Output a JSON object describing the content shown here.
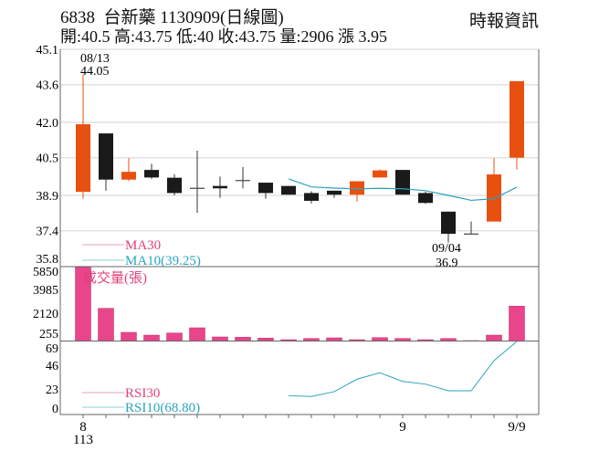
{
  "header": {
    "title": "6838  台新藥 1130909(日線圖)",
    "quote": "開:40.5 高:43.75 低:40 收:43.75 量:2906 漲 3.95",
    "source": "時報資訊"
  },
  "colors": {
    "up": "#e8500f",
    "down": "#1a1a1a",
    "ma10": "#2aa3bf",
    "ma30": "#e0407a",
    "volume": "#e8458a",
    "grid": "#e2e2e2"
  },
  "chart_data": [
    {
      "type": "candlestick",
      "title": "6838 台新藥 1130909(日線圖)",
      "y_ticks": [
        "45.1",
        "43.6",
        "42.0",
        "40.5",
        "38.9",
        "37.4",
        "35.8"
      ],
      "ylim": [
        35.8,
        45.1
      ],
      "grid": true,
      "ohlc": [
        [
          39.05,
          44.05,
          38.76,
          41.92
        ],
        [
          41.53,
          41.53,
          39.1,
          39.57
        ],
        [
          39.57,
          40.48,
          39.5,
          39.9
        ],
        [
          39.98,
          40.24,
          39.6,
          39.66
        ],
        [
          39.65,
          39.8,
          38.9,
          39.0
        ],
        [
          39.2,
          40.8,
          38.16,
          39.2
        ],
        [
          39.3,
          39.7,
          38.8,
          39.2
        ],
        [
          39.53,
          40.1,
          39.2,
          39.53
        ],
        [
          39.44,
          39.44,
          38.76,
          39.0
        ],
        [
          39.3,
          39.3,
          38.93,
          38.93
        ],
        [
          39.0,
          39.08,
          38.56,
          38.67
        ],
        [
          39.1,
          39.1,
          38.8,
          38.93
        ],
        [
          38.93,
          39.5,
          38.64,
          39.5
        ],
        [
          39.66,
          40.01,
          39.66,
          39.96
        ],
        [
          39.98,
          39.98,
          38.93,
          38.93
        ],
        [
          39.0,
          39.06,
          38.55,
          38.58
        ],
        [
          38.21,
          38.21,
          36.9,
          37.27
        ],
        [
          37.26,
          37.79,
          37.26,
          37.26
        ],
        [
          37.79,
          40.48,
          37.79,
          39.79
        ],
        [
          40.5,
          43.75,
          40.0,
          43.75
        ]
      ],
      "ma10": [
        null,
        null,
        null,
        null,
        null,
        null,
        null,
        null,
        null,
        39.6,
        39.26,
        39.21,
        39.18,
        39.2,
        39.18,
        39.1,
        38.9,
        38.69,
        38.76,
        39.25
      ],
      "legend": [
        "MA30",
        "MA10(39.25)"
      ],
      "annotations": [
        {
          "index": 0,
          "date": "08/13",
          "value": "44.05",
          "type": "high"
        },
        {
          "index": 16,
          "date": "09/04",
          "value": "36.9",
          "type": "low"
        }
      ]
    },
    {
      "type": "bar",
      "label": "成交量(張)",
      "y_ticks": [
        "5850",
        "3985",
        "2120",
        "255"
      ],
      "ylim": [
        0,
        6200
      ],
      "values": [
        6150,
        2725,
        723,
        494,
        669,
        1104,
        342,
        319,
        244,
        114,
        213,
        267,
        114,
        289,
        213,
        114,
        213,
        38,
        494,
        2906
      ]
    },
    {
      "type": "line",
      "y_ticks": [
        "69",
        "46",
        "23",
        "0"
      ],
      "ylim": [
        0,
        69
      ],
      "rsi10": [
        null,
        null,
        null,
        null,
        null,
        null,
        null,
        null,
        null,
        12.9,
        12.0,
        17.0,
        29.9,
        36.5,
        27.6,
        24.8,
        17.9,
        17.9,
        49.0,
        68.8
      ],
      "legend": [
        "RSI30",
        "RSI10(68.80)"
      ]
    }
  ],
  "x_axis": {
    "labels": [
      {
        "index": 0,
        "text": "8",
        "sub": "113"
      },
      {
        "index": 14,
        "text": "9",
        "sub": ""
      },
      {
        "index": 19,
        "text": "9/9",
        "sub": ""
      }
    ]
  }
}
